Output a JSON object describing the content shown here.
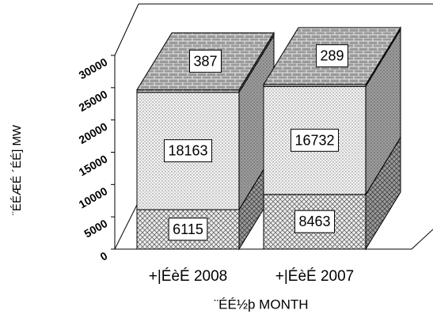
{
  "chart_data": {
    "type": "bar3d_stacked",
    "categories": [
      "+|ÉèÉ 2008",
      "+|ÉèÉ 2007"
    ],
    "series": [
      {
        "color": "#d9d9d9",
        "values": [
          6115,
          8463
        ]
      },
      {
        "color": "#e8e8e8",
        "values": [
          18163,
          16732
        ]
      },
      {
        "color": "#a6a6a6",
        "values": [
          387,
          289
        ]
      }
    ],
    "ylabel": "¨ÉÉÆÉ ´ÉÉ] MW",
    "xlabel": "¨ÉÉ½þ MONTH",
    "ylim": [
      0,
      30000
    ],
    "yticks": [
      0,
      5000,
      10000,
      15000,
      20000,
      25000,
      30000
    ]
  }
}
